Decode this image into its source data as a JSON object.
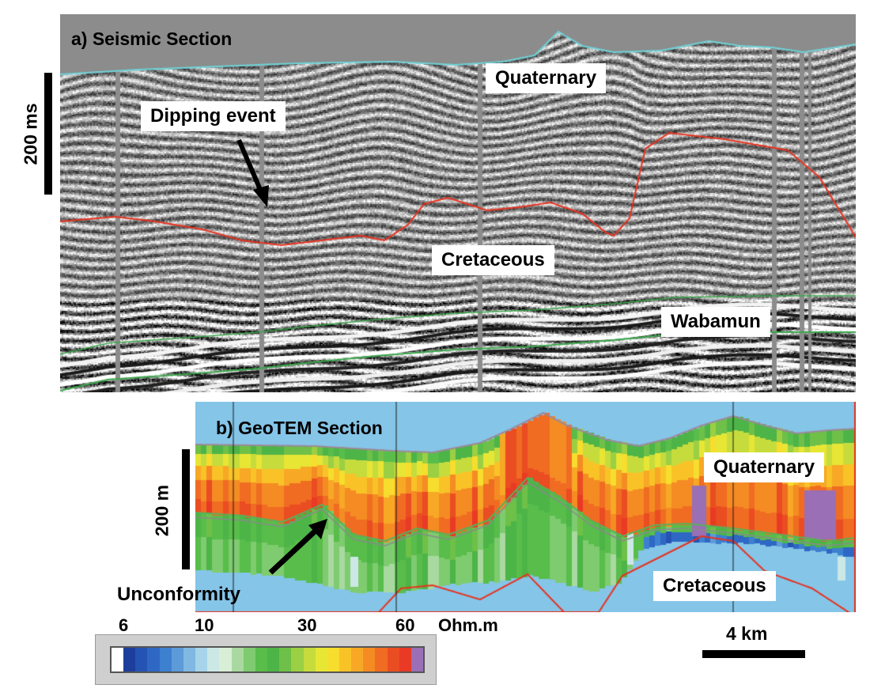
{
  "panel_a": {
    "title": "a) Seismic Section",
    "scale_label": "200 ms",
    "labels": {
      "quaternary": "Quaternary",
      "dipping_event": "Dipping event",
      "cretaceous": "Cretaceous",
      "wabamun": "Wabamun"
    },
    "line_colors": {
      "surface": "#6fd3d8",
      "unconformity": "#e8321f",
      "wabamun": "#3aa64a"
    }
  },
  "panel_b": {
    "title": "b) GeoTEM Section",
    "scale_label": "200 m",
    "labels": {
      "quaternary": "Quaternary",
      "cretaceous": "Cretaceous",
      "unconformity": "Unconformity"
    },
    "sky_color": "#85c5e8"
  },
  "colorbar": {
    "ticks": [
      "6",
      "10",
      "30",
      "60"
    ],
    "unit": "Ohm.m",
    "colors": [
      "#ffffff",
      "#1c3e9c",
      "#2553b3",
      "#2f68c4",
      "#3d80d0",
      "#5c9bd8",
      "#80b8e2",
      "#a7d4ea",
      "#cce8e6",
      "#d8eed6",
      "#a9d9a0",
      "#7fcb70",
      "#58bd4a",
      "#4db447",
      "#6ec048",
      "#9bcf44",
      "#c6dc3d",
      "#e8e635",
      "#f7dd2d",
      "#f9c328",
      "#f7a825",
      "#f48c23",
      "#f06c22",
      "#ea4d22",
      "#e83a24",
      "#9a6fb5"
    ]
  },
  "scale_bar": {
    "label": "4 km"
  }
}
